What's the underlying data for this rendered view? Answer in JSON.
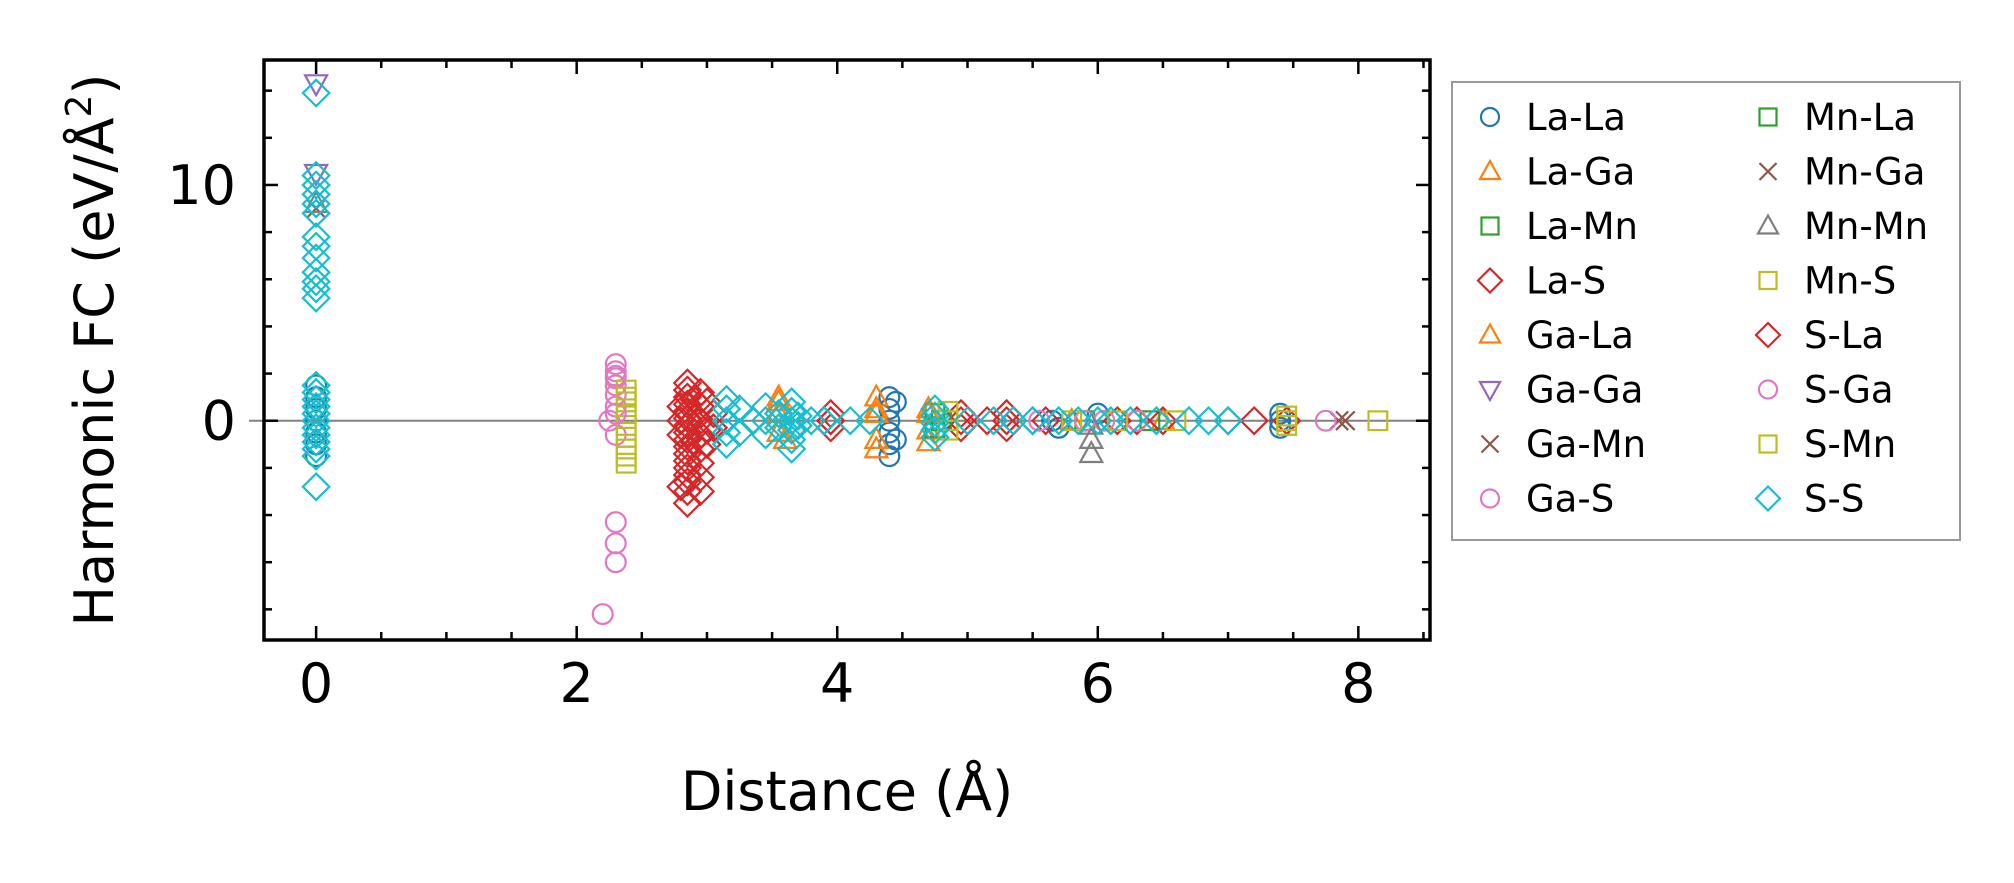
{
  "chart_data": {
    "type": "scatter",
    "xlabel": "Distance (Å)",
    "ylabel_main": "Harmonic FC (eV/Å",
    "ylabel_sup": "2",
    "ylabel_end": ")",
    "xlim": [
      -0.4,
      8.55
    ],
    "ylim": [
      -9.3,
      15.3
    ],
    "xticks": [
      0,
      2,
      4,
      6,
      8
    ],
    "xtick_labels": [
      "0",
      "2",
      "4",
      "6",
      "8"
    ],
    "x_minor_step": 0.5,
    "yticks": [
      0,
      10
    ],
    "ytick_labels": [
      "0",
      "10"
    ],
    "y_minor_step": 2,
    "zero_line": 0,
    "legend_position": "outside-right",
    "legend_columns": 2,
    "series": [
      {
        "name": "La-La",
        "marker": "circle",
        "color": "#1f77b4",
        "points": [
          [
            0,
            1.5
          ],
          [
            0,
            1.0
          ],
          [
            0,
            0.5
          ],
          [
            0,
            0
          ],
          [
            0,
            -0.5
          ],
          [
            0,
            -1.0
          ],
          [
            0,
            -1.5
          ],
          [
            4.4,
            1.0
          ],
          [
            4.4,
            0.5
          ],
          [
            4.4,
            0
          ],
          [
            4.4,
            -0.5
          ],
          [
            4.4,
            -1.0
          ],
          [
            4.4,
            -1.5
          ],
          [
            4.45,
            0.8
          ],
          [
            4.45,
            -0.8
          ],
          [
            5.65,
            0
          ],
          [
            5.7,
            -0.3
          ],
          [
            6.0,
            0.3
          ],
          [
            7.4,
            0.3
          ],
          [
            7.4,
            0
          ],
          [
            7.4,
            -0.3
          ]
        ]
      },
      {
        "name": "La-Ga",
        "marker": "triangle",
        "color": "#ff7f0e",
        "points": [
          [
            3.55,
            1.0
          ],
          [
            3.55,
            0.3
          ],
          [
            3.55,
            -0.5
          ],
          [
            3.6,
            -0.8
          ],
          [
            4.3,
            1.0
          ],
          [
            4.3,
            0.3
          ],
          [
            4.3,
            -0.8
          ],
          [
            4.3,
            -1.2
          ],
          [
            4.7,
            0.5
          ],
          [
            4.7,
            -0.4
          ],
          [
            4.7,
            -0.9
          ],
          [
            5.8,
            0
          ],
          [
            6.5,
            0
          ]
        ]
      },
      {
        "name": "La-Mn",
        "marker": "square",
        "color": "#2ca02c",
        "points": [
          [
            4.75,
            0.3
          ],
          [
            4.75,
            -0.3
          ],
          [
            5.9,
            0
          ],
          [
            6.4,
            0
          ]
        ]
      },
      {
        "name": "La-S",
        "marker": "diamond",
        "color": "#d62728",
        "points": [
          [
            2.85,
            1.6
          ],
          [
            2.85,
            1.3
          ],
          [
            2.85,
            1.0
          ],
          [
            2.85,
            0.7
          ],
          [
            2.85,
            0.4
          ],
          [
            2.85,
            0.1
          ],
          [
            2.85,
            -0.2
          ],
          [
            2.85,
            -0.5
          ],
          [
            2.85,
            -0.8
          ],
          [
            2.85,
            -1.1
          ],
          [
            2.85,
            -1.4
          ],
          [
            2.85,
            -1.7
          ],
          [
            2.85,
            -2.0
          ],
          [
            2.85,
            -2.3
          ],
          [
            2.85,
            -2.6
          ],
          [
            2.85,
            -3.0
          ],
          [
            2.85,
            -3.5
          ],
          [
            2.95,
            1.2
          ],
          [
            2.95,
            0.6
          ],
          [
            2.95,
            0
          ],
          [
            2.95,
            -0.6
          ],
          [
            2.95,
            -1.2
          ],
          [
            2.95,
            -1.8
          ],
          [
            2.95,
            -2.4
          ],
          [
            2.95,
            -3.0
          ],
          [
            3.0,
            0.8
          ],
          [
            3.0,
            -0.4
          ],
          [
            3.0,
            -1.0
          ],
          [
            3.05,
            0.3
          ],
          [
            3.05,
            -0.3
          ],
          [
            2.8,
            0
          ],
          [
            2.8,
            -0.6
          ],
          [
            2.8,
            0.6
          ],
          [
            2.8,
            -2.8
          ],
          [
            3.95,
            0.3
          ],
          [
            3.95,
            0
          ],
          [
            3.95,
            -0.3
          ],
          [
            4.95,
            0.3
          ],
          [
            4.95,
            0
          ],
          [
            4.95,
            -0.3
          ],
          [
            5.15,
            0
          ],
          [
            5.3,
            0.3
          ],
          [
            5.3,
            0
          ],
          [
            5.3,
            -0.3
          ],
          [
            5.5,
            0
          ],
          [
            5.6,
            0
          ],
          [
            6.15,
            0
          ],
          [
            6.3,
            0
          ],
          [
            6.5,
            0
          ],
          [
            7.0,
            0
          ],
          [
            7.2,
            0
          ],
          [
            7.45,
            0
          ]
        ]
      },
      {
        "name": "Ga-La",
        "marker": "triangle",
        "color": "#ff7f0e",
        "points": [
          [
            3.55,
            0.8
          ],
          [
            4.3,
            0.5
          ],
          [
            4.7,
            0.3
          ]
        ]
      },
      {
        "name": "Ga-Ga",
        "marker": "triangle-down",
        "color": "#9467bd",
        "points": [
          [
            0,
            14.3
          ],
          [
            0,
            10.5
          ]
        ]
      },
      {
        "name": "Ga-Mn",
        "marker": "x",
        "color": "#8c564b",
        "points": [
          [
            0,
            9.0
          ],
          [
            7.85,
            0
          ]
        ]
      },
      {
        "name": "Ga-S",
        "marker": "circle",
        "color": "#e377c2",
        "points": [
          [
            2.3,
            2.4
          ],
          [
            2.3,
            2.1
          ],
          [
            2.3,
            1.8
          ],
          [
            2.3,
            1.5
          ],
          [
            2.3,
            1.1
          ],
          [
            2.3,
            0.6
          ],
          [
            2.25,
            0
          ],
          [
            2.3,
            -0.6
          ],
          [
            2.3,
            -4.3
          ],
          [
            2.3,
            -5.2
          ],
          [
            2.3,
            -6.0
          ],
          [
            2.2,
            -8.2
          ],
          [
            5.55,
            0
          ],
          [
            5.9,
            0
          ],
          [
            6.05,
            0
          ],
          [
            6.3,
            0
          ],
          [
            7.75,
            0
          ]
        ]
      },
      {
        "name": "Mn-La",
        "marker": "square",
        "color": "#2ca02c",
        "points": [
          [
            4.8,
            0
          ]
        ]
      },
      {
        "name": "Mn-Ga",
        "marker": "x",
        "color": "#8c564b",
        "points": [
          [
            7.9,
            0
          ]
        ]
      },
      {
        "name": "Mn-Mn",
        "marker": "triangle",
        "color": "#7f7f7f",
        "points": [
          [
            0,
            9.2
          ],
          [
            5.95,
            -0.2
          ],
          [
            5.95,
            -0.8
          ],
          [
            5.95,
            -1.4
          ]
        ]
      },
      {
        "name": "Mn-S",
        "marker": "square",
        "color": "#bcbd22",
        "points": [
          [
            2.38,
            1.3
          ],
          [
            2.38,
            0.8
          ],
          [
            2.38,
            0.3
          ],
          [
            2.38,
            -0.2
          ],
          [
            2.38,
            -0.7
          ],
          [
            2.38,
            -1.2
          ],
          [
            2.38,
            -1.8
          ],
          [
            4.85,
            0.4
          ],
          [
            4.85,
            0
          ],
          [
            4.85,
            -0.4
          ],
          [
            5.8,
            0
          ],
          [
            6.15,
            0
          ],
          [
            6.6,
            0
          ],
          [
            7.45,
            0.2
          ],
          [
            7.45,
            -0.2
          ],
          [
            8.15,
            0
          ]
        ]
      },
      {
        "name": "S-La",
        "marker": "diamond",
        "color": "#d62728",
        "points": [
          [
            2.9,
            0.9
          ],
          [
            2.9,
            -0.9
          ],
          [
            3.95,
            0
          ]
        ]
      },
      {
        "name": "S-Ga",
        "marker": "circle",
        "color": "#e377c2",
        "points": [
          [
            2.3,
            1.9
          ],
          [
            2.3,
            0.3
          ]
        ]
      },
      {
        "name": "S-Mn",
        "marker": "square",
        "color": "#bcbd22",
        "points": [
          [
            2.38,
            1.0
          ],
          [
            2.38,
            -1.5
          ],
          [
            7.45,
            0
          ]
        ]
      },
      {
        "name": "S-S",
        "marker": "diamond",
        "color": "#17becf",
        "points": [
          [
            0,
            13.9
          ],
          [
            0,
            10.4
          ],
          [
            0,
            10.0
          ],
          [
            0,
            9.6
          ],
          [
            0,
            9.2
          ],
          [
            0,
            8.8
          ],
          [
            0,
            7.8
          ],
          [
            0,
            7.4
          ],
          [
            0,
            6.9
          ],
          [
            0,
            6.3
          ],
          [
            0,
            5.9
          ],
          [
            0,
            5.6
          ],
          [
            0,
            5.2
          ],
          [
            0,
            1.5
          ],
          [
            0,
            1.2
          ],
          [
            0,
            0.9
          ],
          [
            0,
            0.6
          ],
          [
            0,
            0.3
          ],
          [
            0,
            0
          ],
          [
            0,
            -0.3
          ],
          [
            0,
            -0.6
          ],
          [
            0,
            -0.9
          ],
          [
            0,
            -1.2
          ],
          [
            0,
            -1.5
          ],
          [
            0,
            -2.8
          ],
          [
            3.15,
            0.9
          ],
          [
            3.15,
            0.5
          ],
          [
            3.15,
            0
          ],
          [
            3.15,
            -0.5
          ],
          [
            3.15,
            -1.0
          ],
          [
            3.25,
            0.5
          ],
          [
            3.25,
            -0.5
          ],
          [
            3.35,
            0
          ],
          [
            3.45,
            0.6
          ],
          [
            3.45,
            0
          ],
          [
            3.45,
            -0.6
          ],
          [
            3.55,
            0.3
          ],
          [
            3.55,
            -0.3
          ],
          [
            3.65,
            0.8
          ],
          [
            3.65,
            0.4
          ],
          [
            3.65,
            0
          ],
          [
            3.65,
            -0.4
          ],
          [
            3.65,
            -0.8
          ],
          [
            3.65,
            -1.2
          ],
          [
            3.7,
            0.2
          ],
          [
            3.7,
            -0.2
          ],
          [
            3.8,
            0
          ],
          [
            3.9,
            0
          ],
          [
            4.1,
            0
          ],
          [
            4.25,
            0
          ],
          [
            4.75,
            0.5
          ],
          [
            4.75,
            0.2
          ],
          [
            4.75,
            -0.1
          ],
          [
            4.75,
            -0.4
          ],
          [
            4.75,
            -0.7
          ],
          [
            5.0,
            0
          ],
          [
            5.2,
            0
          ],
          [
            5.35,
            0
          ],
          [
            5.5,
            0
          ],
          [
            5.7,
            0
          ],
          [
            5.85,
            0
          ],
          [
            6.0,
            0
          ],
          [
            6.1,
            0
          ],
          [
            6.25,
            0
          ],
          [
            6.45,
            0
          ],
          [
            6.7,
            0
          ],
          [
            6.85,
            0
          ],
          [
            7.0,
            0
          ]
        ]
      }
    ]
  }
}
